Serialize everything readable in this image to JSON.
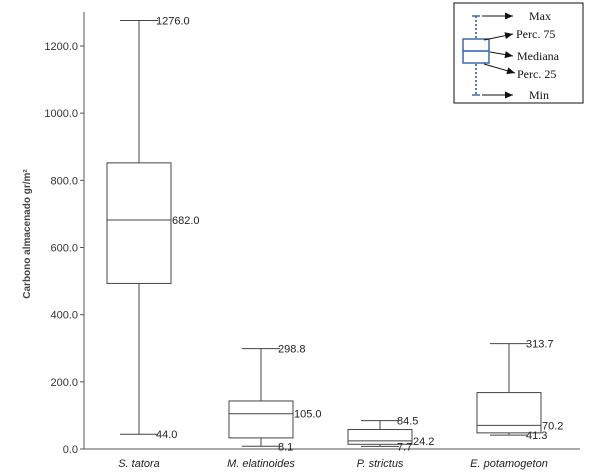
{
  "chart_data": {
    "type": "box",
    "ylabel": "Carbono almacenado gr/m²",
    "ylim": [
      0,
      1300
    ],
    "yticks": [
      "0.0",
      "200.0",
      "400.0",
      "600.0",
      "800.0",
      "1000.0",
      "1200.0"
    ],
    "categories": [
      "S. tatora",
      "M. elatinoides",
      "P. strictus",
      "E. potamogeton"
    ],
    "boxes": [
      {
        "min": 44.0,
        "q1": 493,
        "median": 682.0,
        "q3": 852,
        "max": 1276.0,
        "labels": {
          "max": "1276.0",
          "median": "682.0",
          "min": "44.0"
        }
      },
      {
        "min": 8.1,
        "q1": 33,
        "median": 105.0,
        "q3": 143,
        "max": 298.8,
        "labels": {
          "max": "298.8",
          "median": "105.0",
          "min": "8.1"
        }
      },
      {
        "min": 7.7,
        "q1": 14,
        "median": 24.2,
        "q3": 58,
        "max": 84.5,
        "labels": {
          "max": "84.5",
          "median": "24.2",
          "min": "7.7"
        }
      },
      {
        "min": 41.3,
        "q1": 48,
        "median": 70.2,
        "q3": 168,
        "max": 313.7,
        "labels": {
          "max": "313.7",
          "median": "70.2",
          "min": "41.3"
        }
      }
    ],
    "legend": {
      "position": "top-right",
      "items": [
        "Max",
        "Perc. 75",
        "Mediana",
        "Perc. 25",
        "Min"
      ],
      "color": "#2e5fa8"
    },
    "grid": false
  }
}
